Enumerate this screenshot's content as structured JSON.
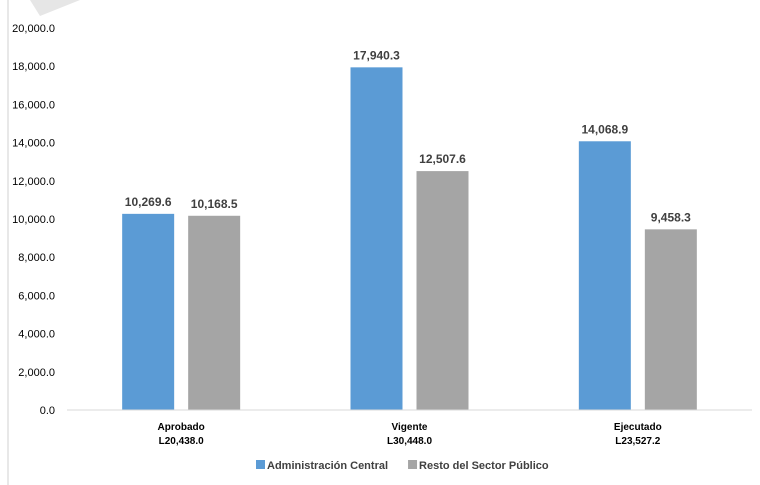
{
  "chart_data": {
    "type": "bar",
    "categories": [
      [
        "Aprobado",
        "L20,438.0"
      ],
      [
        "Vigente",
        "L30,448.0"
      ],
      [
        "Ejecutado",
        "L23,527.2"
      ]
    ],
    "series": [
      {
        "name": "Administración Central",
        "color": "#5b9bd5",
        "values": [
          10269.6,
          17940.3,
          14068.9
        ],
        "labels": [
          "10,269.6",
          "17,940.3",
          "14,068.9"
        ]
      },
      {
        "name": "Resto del Sector Público",
        "color": "#a5a5a5",
        "values": [
          10168.5,
          12507.6,
          9458.3
        ],
        "labels": [
          "10,168.5",
          "12,507.6",
          "9,458.3"
        ]
      }
    ],
    "ylim": [
      0,
      20000
    ],
    "yticks": [
      "0.0",
      "2,000.0",
      "4,000.0",
      "6,000.0",
      "8,000.0",
      "10,000.0",
      "12,000.0",
      "14,000.0",
      "16,000.0",
      "18,000.0",
      "20,000.0"
    ],
    "grid": false,
    "legend": "bottom"
  }
}
